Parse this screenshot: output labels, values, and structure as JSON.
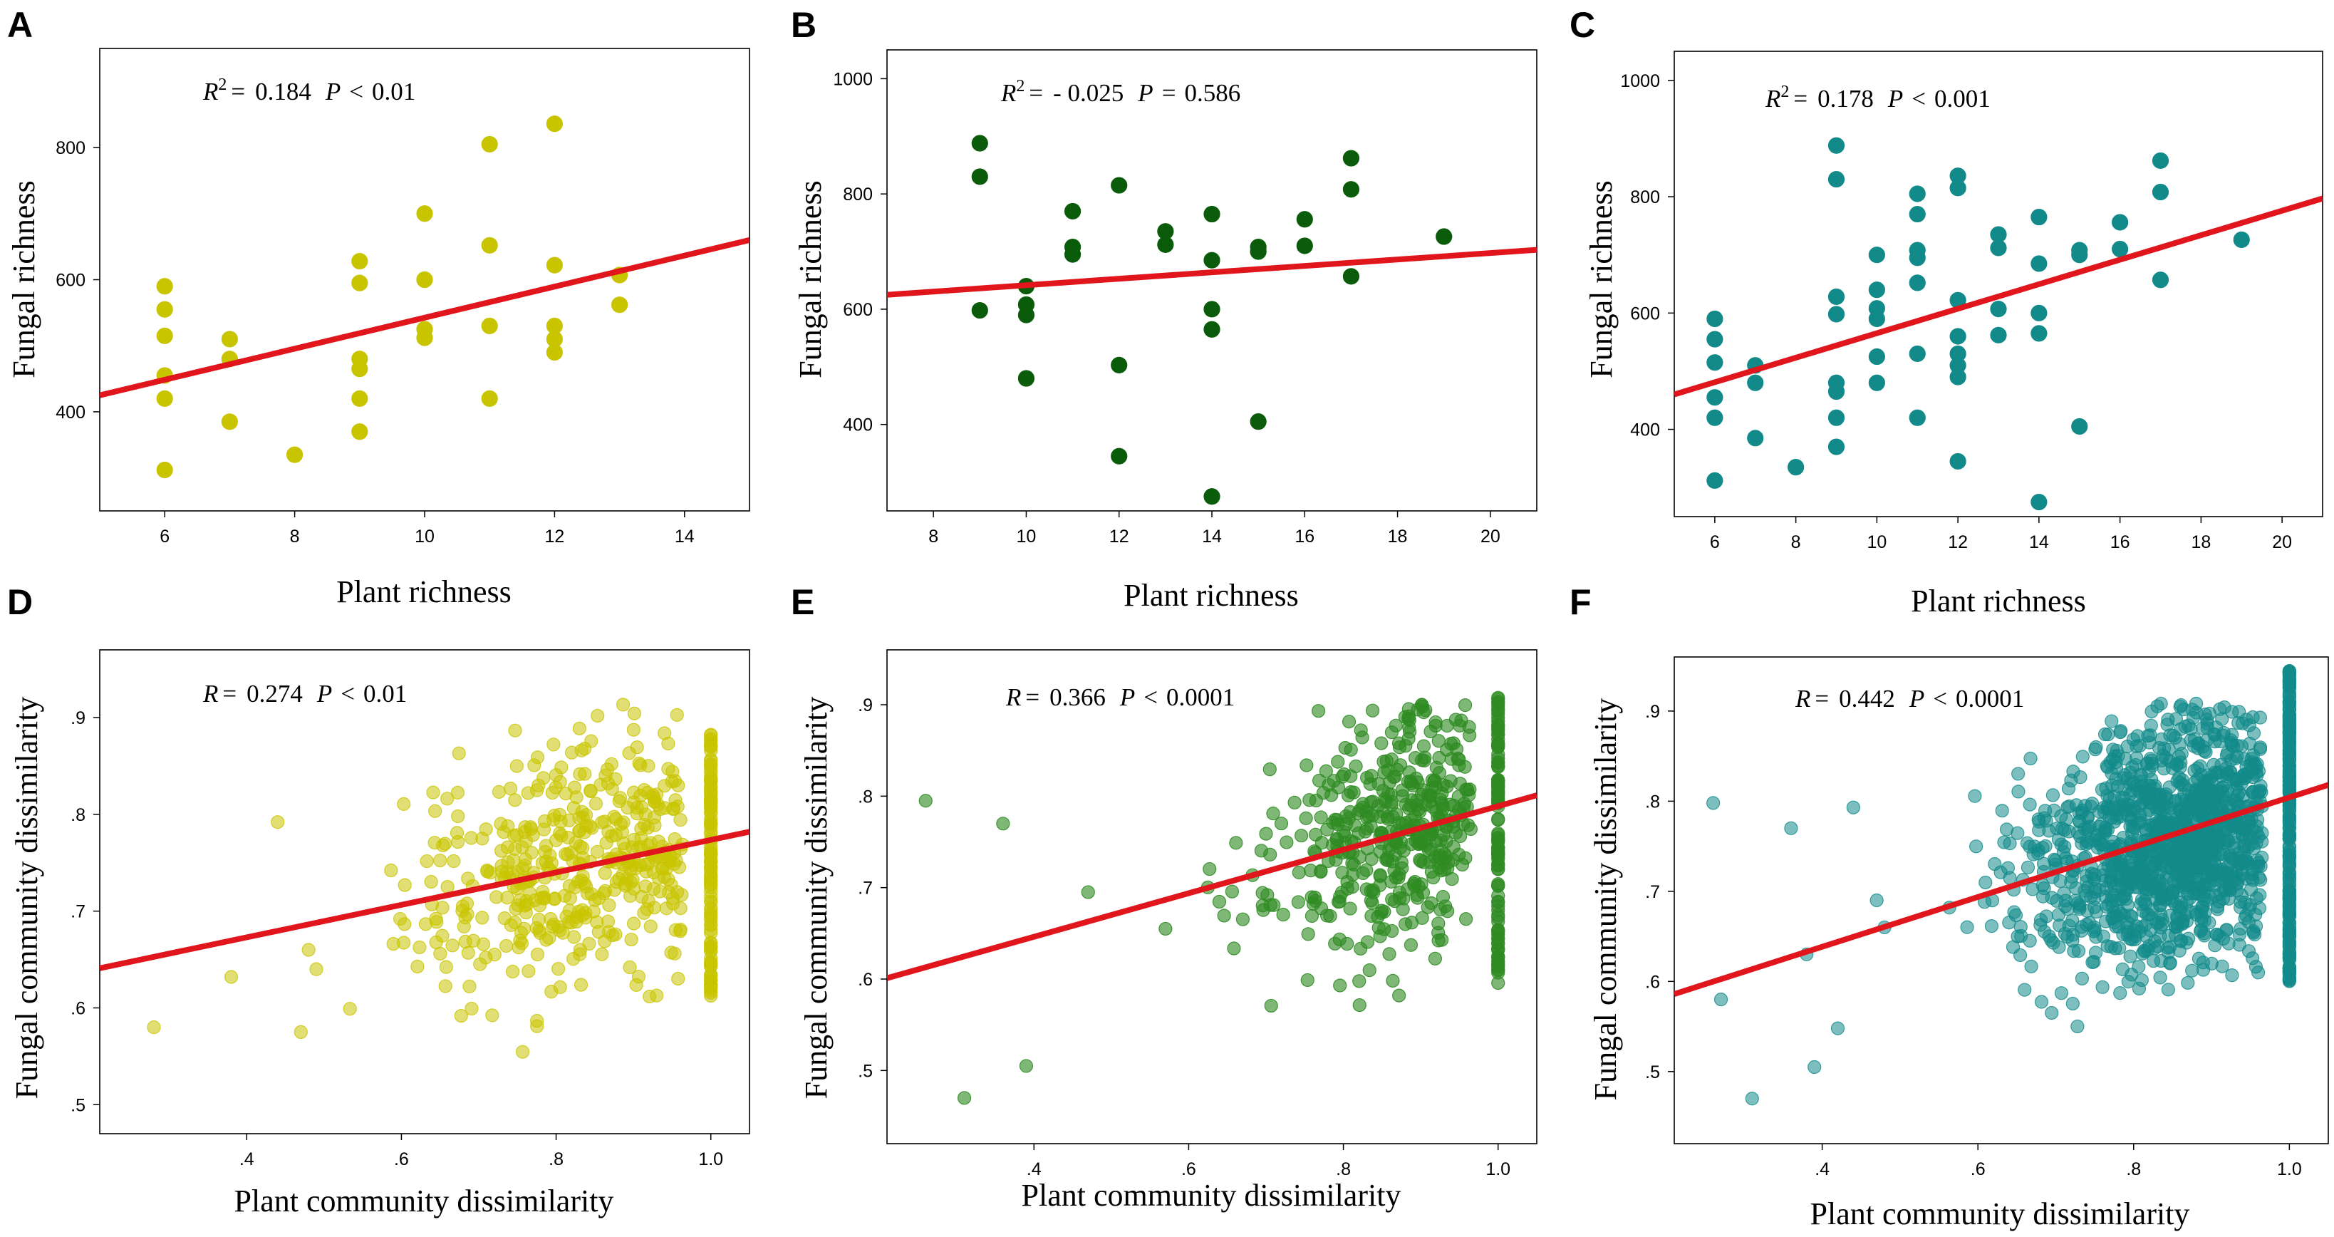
{
  "figure": {
    "colors": {
      "yellow": "#c8c400",
      "green_dark": "#0a5c0a",
      "teal": "#138a8a",
      "green_light": "#2e8b22",
      "regression": "#e0161c"
    }
  },
  "chart_data": [
    {
      "id": "A",
      "type": "scatter",
      "panel_label": "A",
      "xlabel": "Plant richness",
      "ylabel": "Fungal richness",
      "xlim": [
        5,
        15
      ],
      "ylim": [
        250,
        950
      ],
      "xticks": [
        6,
        8,
        10,
        12,
        14
      ],
      "xtick_labels": [
        "6",
        "8",
        "10",
        "12",
        "14"
      ],
      "yticks": [
        400,
        600,
        800
      ],
      "ytick_labels": [
        "400",
        "600",
        "800"
      ],
      "stat": {
        "lhs": "R",
        "sup": "2",
        "eq": "=",
        "val": "0.184",
        "p": "P",
        "op": "<",
        "pval": "0.01"
      },
      "color": "#c8c400",
      "opacity": 1,
      "marker_size": 11,
      "points": [
        [
          6,
          590
        ],
        [
          6,
          555
        ],
        [
          6,
          515
        ],
        [
          6,
          455
        ],
        [
          6,
          420
        ],
        [
          6,
          312
        ],
        [
          7,
          510
        ],
        [
          7,
          480
        ],
        [
          7,
          385
        ],
        [
          8,
          335
        ],
        [
          9,
          628
        ],
        [
          9,
          595
        ],
        [
          9,
          480
        ],
        [
          9,
          465
        ],
        [
          9,
          420
        ],
        [
          9,
          370
        ],
        [
          10,
          700
        ],
        [
          10,
          600
        ],
        [
          10,
          525
        ],
        [
          10,
          512
        ],
        [
          11,
          805
        ],
        [
          11,
          652
        ],
        [
          11,
          530
        ],
        [
          11,
          420
        ],
        [
          12,
          836
        ],
        [
          12,
          622
        ],
        [
          12,
          530
        ],
        [
          12,
          510
        ],
        [
          12,
          490
        ],
        [
          13,
          607
        ],
        [
          13,
          562
        ]
      ],
      "line": {
        "x": [
          5,
          15
        ],
        "y": [
          425,
          660
        ]
      }
    },
    {
      "id": "B",
      "type": "scatter",
      "panel_label": "B",
      "xlabel": "Plant richness",
      "ylabel": "Fungal richness",
      "xlim": [
        7,
        21
      ],
      "ylim": [
        250,
        1050
      ],
      "xticks": [
        8,
        10,
        12,
        14,
        16,
        18,
        20
      ],
      "xtick_labels": [
        "8",
        "10",
        "12",
        "14",
        "16",
        "18",
        "20"
      ],
      "yticks": [
        400,
        600,
        800,
        1000
      ],
      "ytick_labels": [
        "400",
        "600",
        "800",
        "1000"
      ],
      "stat": {
        "lhs": "R",
        "sup": "2",
        "eq": "=",
        "val": "- 0.025",
        "p": "P",
        "op": "=",
        "pval": "0.586"
      },
      "color": "#0a5c0a",
      "opacity": 1,
      "marker_size": 11,
      "points": [
        [
          9,
          888
        ],
        [
          9,
          830
        ],
        [
          9,
          598
        ],
        [
          10,
          640
        ],
        [
          10,
          608
        ],
        [
          10,
          590
        ],
        [
          10,
          480
        ],
        [
          11,
          770
        ],
        [
          11,
          708
        ],
        [
          11,
          695
        ],
        [
          12,
          815
        ],
        [
          12,
          503
        ],
        [
          12,
          345
        ],
        [
          13,
          735
        ],
        [
          13,
          712
        ],
        [
          14,
          765
        ],
        [
          14,
          685
        ],
        [
          14,
          600
        ],
        [
          14,
          565
        ],
        [
          14,
          275
        ],
        [
          15,
          708
        ],
        [
          15,
          700
        ],
        [
          15,
          405
        ],
        [
          16,
          756
        ],
        [
          16,
          710
        ],
        [
          17,
          862
        ],
        [
          17,
          808
        ],
        [
          17,
          657
        ],
        [
          19,
          726
        ]
      ],
      "line": {
        "x": [
          7,
          21
        ],
        "y": [
          625,
          703
        ]
      }
    },
    {
      "id": "C",
      "type": "scatter",
      "panel_label": "C",
      "xlabel": "Plant richness",
      "ylabel": "Fungal richness",
      "xlim": [
        5,
        21
      ],
      "ylim": [
        250,
        1050
      ],
      "xticks": [
        6,
        8,
        10,
        12,
        14,
        16,
        18,
        20
      ],
      "xtick_labels": [
        "6",
        "8",
        "10",
        "12",
        "14",
        "16",
        "18",
        "20"
      ],
      "yticks": [
        400,
        600,
        800,
        1000
      ],
      "ytick_labels": [
        "400",
        "600",
        "800",
        "1000"
      ],
      "stat": {
        "lhs": "R",
        "sup": "2",
        "eq": "=",
        "val": "0.178",
        "p": "P",
        "op": "<",
        "pval": "0.001"
      },
      "color": "#138a8a",
      "opacity": 1,
      "marker_size": 11,
      "points": [
        [
          6,
          590
        ],
        [
          6,
          555
        ],
        [
          6,
          515
        ],
        [
          6,
          455
        ],
        [
          6,
          420
        ],
        [
          6,
          312
        ],
        [
          7,
          510
        ],
        [
          7,
          480
        ],
        [
          7,
          385
        ],
        [
          8,
          335
        ],
        [
          9,
          888
        ],
        [
          9,
          830
        ],
        [
          9,
          628
        ],
        [
          9,
          598
        ],
        [
          9,
          480
        ],
        [
          9,
          465
        ],
        [
          9,
          420
        ],
        [
          9,
          370
        ],
        [
          10,
          700
        ],
        [
          10,
          640
        ],
        [
          10,
          608
        ],
        [
          10,
          590
        ],
        [
          10,
          525
        ],
        [
          10,
          480
        ],
        [
          11,
          805
        ],
        [
          11,
          770
        ],
        [
          11,
          708
        ],
        [
          11,
          695
        ],
        [
          11,
          652
        ],
        [
          11,
          530
        ],
        [
          11,
          420
        ],
        [
          12,
          836
        ],
        [
          12,
          815
        ],
        [
          12,
          622
        ],
        [
          12,
          560
        ],
        [
          12,
          530
        ],
        [
          12,
          510
        ],
        [
          12,
          490
        ],
        [
          12,
          345
        ],
        [
          13,
          735
        ],
        [
          13,
          712
        ],
        [
          13,
          607
        ],
        [
          13,
          562
        ],
        [
          14,
          765
        ],
        [
          14,
          685
        ],
        [
          14,
          600
        ],
        [
          14,
          565
        ],
        [
          14,
          275
        ],
        [
          15,
          708
        ],
        [
          15,
          700
        ],
        [
          15,
          405
        ],
        [
          16,
          756
        ],
        [
          16,
          710
        ],
        [
          17,
          862
        ],
        [
          17,
          808
        ],
        [
          17,
          657
        ],
        [
          19,
          726
        ]
      ],
      "line": {
        "x": [
          5,
          21
        ],
        "y": [
          460,
          797
        ]
      }
    },
    {
      "id": "D",
      "type": "scatter",
      "panel_label": "D",
      "xlabel": "Plant community dissimilarity",
      "ylabel": "Fungal community dissimilarity",
      "xlim": [
        0.21,
        1.05
      ],
      "ylim": [
        0.47,
        0.97
      ],
      "xticks": [
        0.4,
        0.6,
        0.8,
        1.0
      ],
      "xtick_labels": [
        ".4",
        ".6",
        ".8",
        "1.0"
      ],
      "yticks": [
        0.5,
        0.6,
        0.7,
        0.8,
        0.9
      ],
      "ytick_labels": [
        ".5",
        ".6",
        ".7",
        ".8",
        ".9"
      ],
      "stat": {
        "lhs": "R",
        "sup": "",
        "eq": "=",
        "val": "0.274",
        "p": "P",
        "op": "<",
        "pval": "0.01"
      },
      "color": "#c8c400",
      "opacity": 0.55,
      "marker_size": 9,
      "cloud": {
        "n": 430,
        "n_vertical": 120,
        "seed": 11,
        "x_mode": 0.83,
        "x_min": 0.27,
        "x_sd": 0.11,
        "y_at_x": [
          0.62,
          0.16
        ],
        "y_sd": 0.062,
        "y_min": 0.55,
        "y_max": 0.915,
        "vertical_x": 1.0,
        "vertical_range": [
          0.61,
          0.885
        ]
      },
      "outliers": [
        [
          0.28,
          0.58
        ],
        [
          0.38,
          0.632
        ],
        [
          0.44,
          0.792
        ],
        [
          0.47,
          0.575
        ],
        [
          0.48,
          0.66
        ],
        [
          0.49,
          0.64
        ]
      ],
      "line": {
        "x": [
          0.21,
          1.05
        ],
        "y": [
          0.641,
          0.782
        ]
      }
    },
    {
      "id": "E",
      "type": "scatter",
      "panel_label": "E",
      "xlabel": "Plant community dissimilarity",
      "ylabel": "Fungal community dissimilarity",
      "xlim": [
        0.21,
        1.05
      ],
      "ylim": [
        0.42,
        0.96
      ],
      "xticks": [
        0.4,
        0.6,
        0.8,
        1.0
      ],
      "xtick_labels": [
        ".4",
        ".6",
        ".8",
        "1.0"
      ],
      "yticks": [
        0.5,
        0.6,
        0.7,
        0.8,
        0.9
      ],
      "ytick_labels": [
        ".5",
        ".6",
        ".7",
        ".8",
        ".9"
      ],
      "stat": {
        "lhs": "R",
        "sup": "",
        "eq": "=",
        "val": "0.366",
        "p": "P",
        "op": "<",
        "pval": "0.0001"
      },
      "color": "#2e8b22",
      "opacity": 0.62,
      "marker_size": 9,
      "cloud": {
        "n": 420,
        "n_vertical": 110,
        "seed": 23,
        "x_mode": 0.86,
        "x_min": 0.56,
        "x_sd": 0.08,
        "y_at_x": [
          0.55,
          0.25
        ],
        "y_sd": 0.062,
        "y_min": 0.55,
        "y_max": 0.9,
        "vertical_x": 1.0,
        "vertical_range": [
          0.59,
          0.91
        ]
      },
      "outliers": [
        [
          0.26,
          0.795
        ],
        [
          0.31,
          0.47
        ],
        [
          0.36,
          0.77
        ],
        [
          0.39,
          0.505
        ],
        [
          0.47,
          0.695
        ],
        [
          0.57,
          0.655
        ]
      ],
      "line": {
        "x": [
          0.21,
          1.05
        ],
        "y": [
          0.601,
          0.801
        ]
      }
    },
    {
      "id": "F",
      "type": "scatter",
      "panel_label": "F",
      "xlabel": "Plant community dissimilarity",
      "ylabel": "Fungal community dissimilarity",
      "xlim": [
        0.21,
        1.05
      ],
      "ylim": [
        0.42,
        0.96
      ],
      "xticks": [
        0.4,
        0.6,
        0.8,
        1.0
      ],
      "xtick_labels": [
        ".4",
        ".6",
        ".8",
        "1.0"
      ],
      "yticks": [
        0.5,
        0.6,
        0.7,
        0.8,
        0.9
      ],
      "ytick_labels": [
        ".5",
        ".6",
        ".7",
        ".8",
        ".9"
      ],
      "stat": {
        "lhs": "R",
        "sup": "",
        "eq": "=",
        "val": "0.442",
        "p": "P",
        "op": "<",
        "pval": "0.0001"
      },
      "color": "#138a8a",
      "opacity": 0.55,
      "marker_size": 9,
      "cloud": {
        "n": 1250,
        "n_vertical": 220,
        "seed": 37,
        "x_mode": 0.85,
        "x_min": 0.45,
        "x_sd": 0.09,
        "y_at_x": [
          0.57,
          0.22
        ],
        "y_sd": 0.065,
        "y_min": 0.55,
        "y_max": 0.91,
        "vertical_x": 1.0,
        "vertical_range": [
          0.6,
          0.945
        ]
      },
      "outliers": [
        [
          0.26,
          0.798
        ],
        [
          0.27,
          0.58
        ],
        [
          0.31,
          0.47
        ],
        [
          0.36,
          0.77
        ],
        [
          0.38,
          0.63
        ],
        [
          0.39,
          0.505
        ],
        [
          0.42,
          0.548
        ],
        [
          0.44,
          0.793
        ],
        [
          0.47,
          0.69
        ],
        [
          0.48,
          0.66
        ]
      ],
      "line": {
        "x": [
          0.21,
          1.05
        ],
        "y": [
          0.586,
          0.818
        ]
      }
    }
  ]
}
